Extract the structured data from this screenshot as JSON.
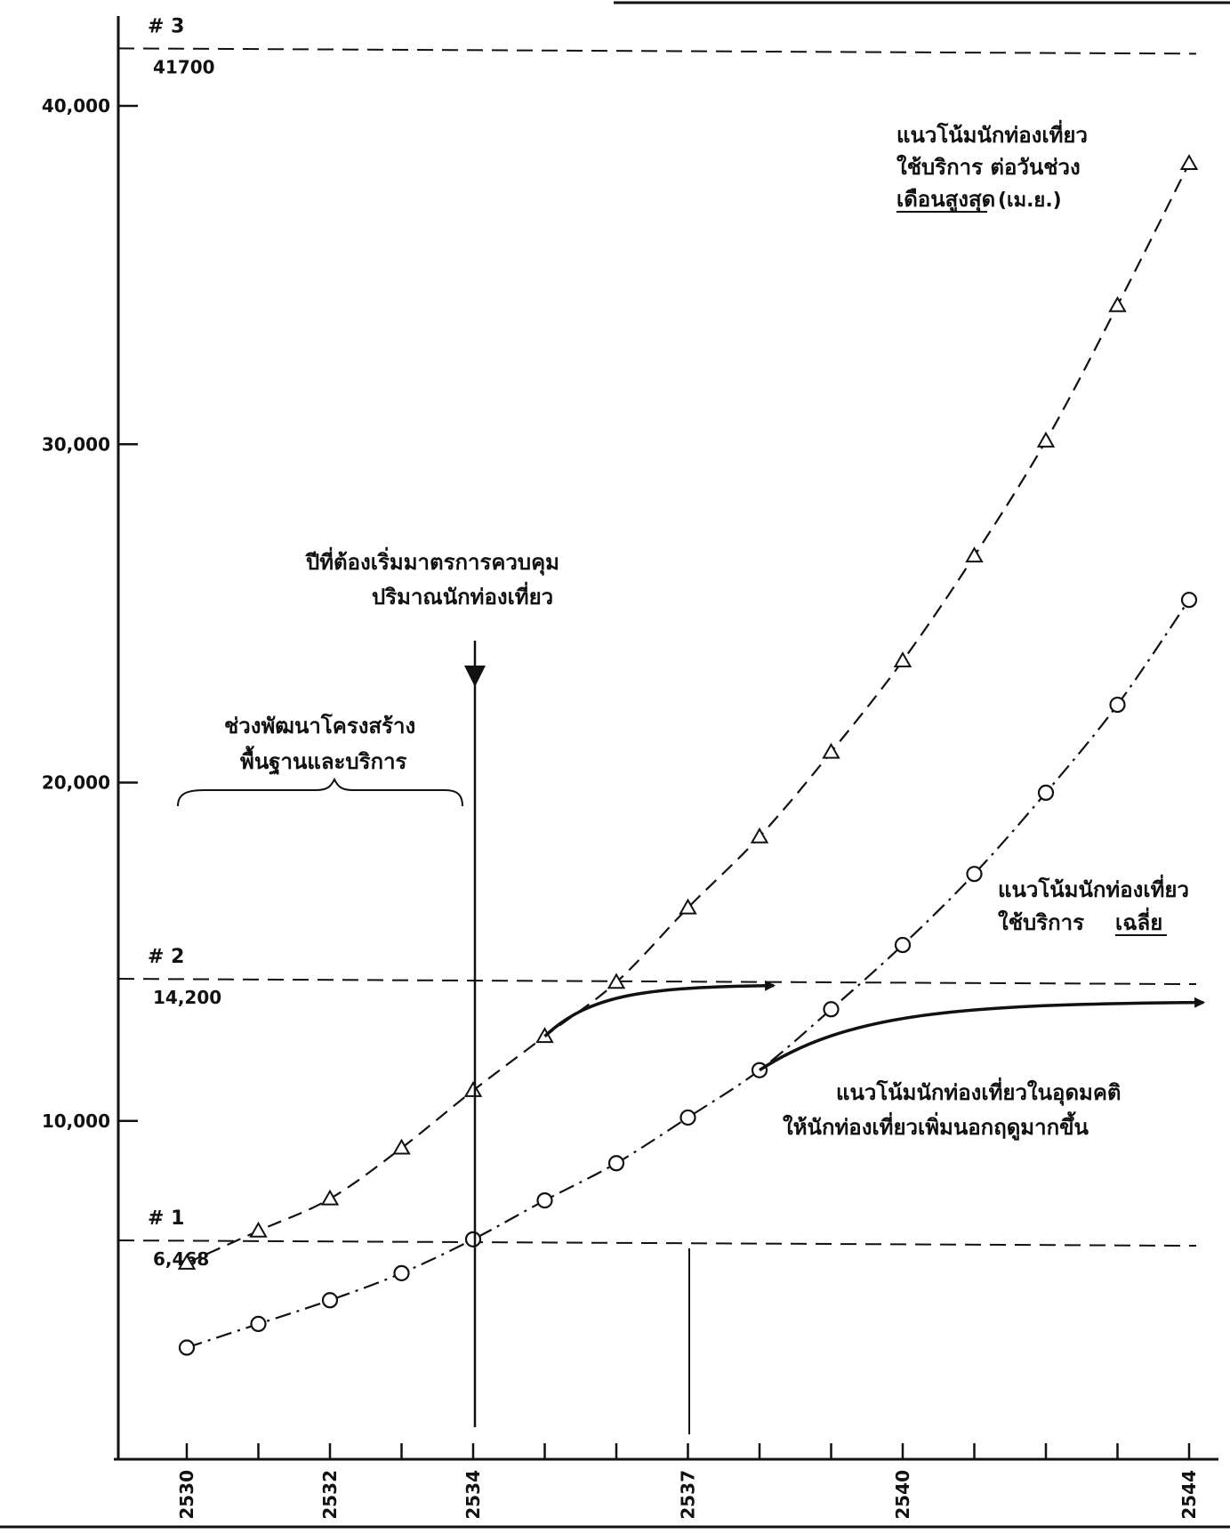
{
  "chart_data": {
    "type": "line",
    "x_ticks": [
      2530,
      2531,
      2532,
      2533,
      2534,
      2535,
      2536,
      2537,
      2538,
      2539,
      2540,
      2541,
      2542,
      2543,
      2544
    ],
    "x_tick_labels": [
      {
        "x": 2530,
        "label": "2530"
      },
      {
        "x": 2532,
        "label": "2532"
      },
      {
        "x": 2534,
        "label": "2534"
      },
      {
        "x": 2537,
        "label": "2537"
      },
      {
        "x": 2540,
        "label": "2540"
      },
      {
        "x": 2544,
        "label": "2544"
      }
    ],
    "y_ticks": [
      {
        "value": 10000,
        "label": "10,000"
      },
      {
        "value": 20000,
        "label": "20,000"
      },
      {
        "value": 30000,
        "label": "30,000"
      },
      {
        "value": 40000,
        "label": "40,000"
      }
    ],
    "xlim": [
      2529,
      2544.4
    ],
    "ylim": [
      0,
      44000
    ],
    "series": [
      {
        "id": "peak",
        "marker": "triangle",
        "dash": "long",
        "x": [
          2530,
          2531,
          2532,
          2533,
          2534,
          2535,
          2536,
          2537,
          2538,
          2539,
          2540,
          2541,
          2542,
          2543,
          2544
        ],
        "values": [
          5800,
          6750,
          7700,
          9200,
          10900,
          12500,
          14100,
          16300,
          18400,
          20900,
          23600,
          26700,
          30100,
          34100,
          38300
        ]
      },
      {
        "id": "average",
        "marker": "circle",
        "dash": "dashdot",
        "x": [
          2530,
          2531,
          2532,
          2533,
          2534,
          2535,
          2536,
          2537,
          2538,
          2539,
          2540,
          2541,
          2542,
          2543,
          2544
        ],
        "values": [
          3300,
          4000,
          4700,
          5500,
          6500,
          7650,
          8750,
          10100,
          11500,
          13300,
          15200,
          17300,
          19700,
          22300,
          25400
        ]
      }
    ],
    "ideal_curves": [
      {
        "from": [
          2535,
          12500
        ],
        "to": [
          2538.2,
          14000
        ]
      },
      {
        "from": [
          2538,
          11500
        ],
        "to": [
          2544.2,
          13500
        ]
      }
    ],
    "thresholds": [
      {
        "marker": "# 1",
        "value": 6468,
        "label": "6,468"
      },
      {
        "marker": "# 2",
        "value": 14200,
        "label": "14,200"
      },
      {
        "marker": "# 3",
        "value": 41700,
        "label": "41700"
      }
    ],
    "control_year": 2534,
    "marked_year": 2537,
    "annotations": {
      "peak_label": [
        "แนวโน้มนักท่องเที่ยว",
        "ใช้บริการ ต่อวันช่วง",
        "เดือนสูงสุด",
        "(เม.ย.)"
      ],
      "average_label": [
        "แนวโน้มนักท่องเที่ยว",
        "ใช้บริการ",
        "เฉลี่ย"
      ],
      "control_label": [
        "ปีที่ต้องเริ่มมาตรการควบคุม",
        "ปริมาณนักท่องเที่ยว"
      ],
      "development_label": [
        "ช่วงพัฒนาโครงสร้าง",
        "พื้นฐานและบริการ"
      ],
      "ideal_label": [
        "แนวโน้มนักท่องเที่ยวในอุดมคติ",
        "ให้นักท่องเที่ยวเพิ่มนอกฤดูมากขึ้น"
      ]
    }
  }
}
